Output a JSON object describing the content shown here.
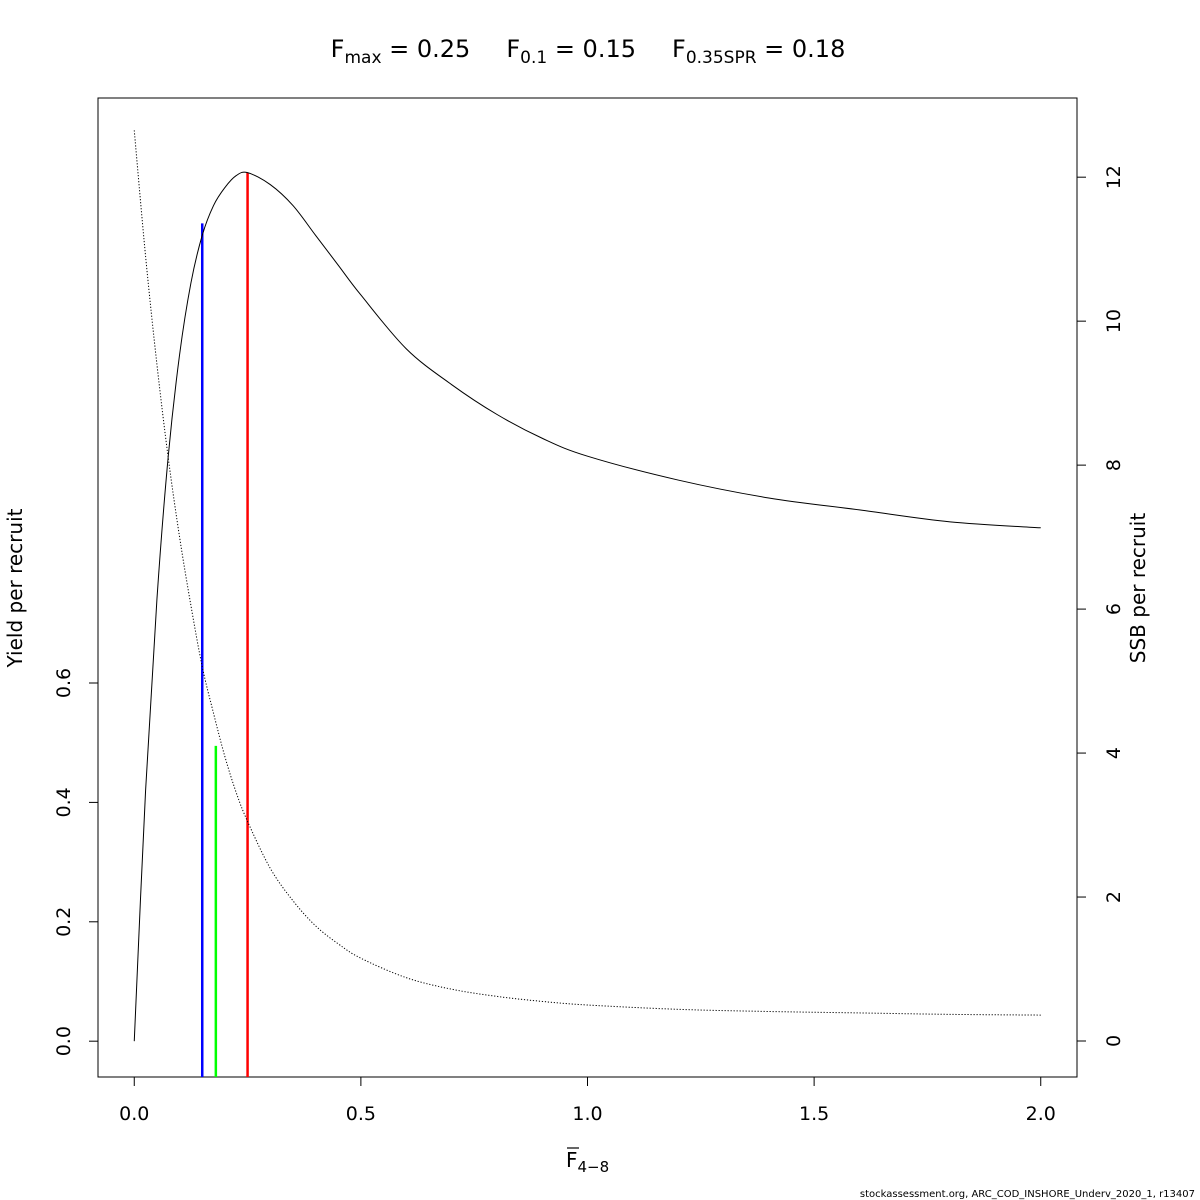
{
  "chart_data": {
    "type": "line",
    "title_parts": {
      "fmax_base": "F",
      "fmax_sub": "max",
      "fmax_eq": " = 0.25",
      "f01_base": "F",
      "f01_sub": "0.1",
      "f01_eq": " = 0.15",
      "fspr_base": "F",
      "fspr_sub": "0.35SPR",
      "fspr_eq": " = 0.18"
    },
    "xlabel_base": "F",
    "xlabel_sub": "4−8",
    "ylabel_left": "Yield per recruit",
    "ylabel_right": "SSB per recruit",
    "xlim": [
      -0.08,
      2.08
    ],
    "ylim_left": [
      -0.06,
      1.58
    ],
    "ylim_right": [
      -0.5,
      13.1
    ],
    "x_ticks": [
      0,
      0.5,
      1.0,
      1.5,
      2.0
    ],
    "x_tick_labels": [
      "0.0",
      "0.5",
      "1.0",
      "1.5",
      "2.0"
    ],
    "y_left_ticks": [
      0,
      0.2,
      0.4,
      0.6
    ],
    "y_left_tick_labels": [
      "0.0",
      "0.2",
      "0.4",
      "0.6"
    ],
    "y_right_ticks": [
      0,
      2,
      4,
      6,
      8,
      10,
      12
    ],
    "y_right_tick_labels": [
      "0",
      "2",
      "4",
      "6",
      "8",
      "10",
      "12"
    ],
    "series": [
      {
        "style": "solid",
        "axis": "left",
        "x": [
          0,
          0.025,
          0.05,
          0.075,
          0.1,
          0.125,
          0.15,
          0.175,
          0.2,
          0.225,
          0.25,
          0.3,
          0.35,
          0.4,
          0.45,
          0.5,
          0.6,
          0.7,
          0.8,
          0.9,
          1.0,
          1.2,
          1.4,
          1.6,
          1.8,
          2.0
        ],
        "y": [
          0,
          0.42,
          0.74,
          0.98,
          1.15,
          1.27,
          1.35,
          1.4,
          1.43,
          1.45,
          1.455,
          1.435,
          1.4,
          1.35,
          1.3,
          1.25,
          1.16,
          1.1,
          1.05,
          1.01,
          0.98,
          0.94,
          0.91,
          0.89,
          0.87,
          0.86
        ]
      },
      {
        "style": "dotted",
        "axis": "right",
        "x": [
          0,
          0.025,
          0.05,
          0.075,
          0.1,
          0.125,
          0.15,
          0.175,
          0.2,
          0.225,
          0.25,
          0.3,
          0.35,
          0.4,
          0.45,
          0.5,
          0.6,
          0.7,
          0.8,
          0.9,
          1.0,
          1.2,
          1.4,
          1.6,
          1.8,
          2.0
        ],
        "y": [
          12.65,
          10.9,
          9.4,
          8.1,
          7.0,
          6.05,
          5.2,
          4.55,
          3.95,
          3.45,
          3.05,
          2.4,
          1.95,
          1.6,
          1.35,
          1.15,
          0.88,
          0.72,
          0.62,
          0.55,
          0.5,
          0.44,
          0.41,
          0.39,
          0.37,
          0.36
        ]
      }
    ],
    "reference_lines": [
      {
        "name": "F0.1",
        "x": 0.15,
        "y_top": 1.37,
        "axis": "left",
        "color": "#0000ff"
      },
      {
        "name": "F0.35SPR",
        "x": 0.18,
        "y_top": 4.1,
        "axis": "right",
        "color": "#00ff00"
      },
      {
        "name": "Fmax",
        "x": 0.25,
        "y_top": 1.455,
        "axis": "left",
        "color": "#ff0000"
      }
    ]
  },
  "footer": "stockassessment.org, ARC_COD_INSHORE_Underv_2020_1, r13407"
}
